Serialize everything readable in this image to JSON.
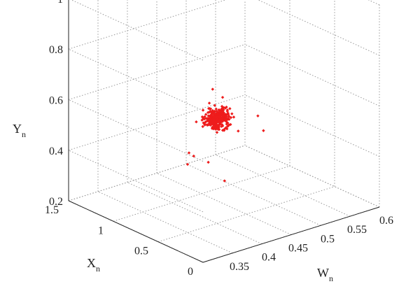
{
  "chart_data": {
    "type": "scatter3d",
    "title": "",
    "axes": {
      "w": {
        "label": "W",
        "subscript": "n",
        "range": [
          0.3,
          0.6
        ],
        "ticks": [
          "0.35",
          "0.4",
          "0.45",
          "0.5",
          "0.55",
          "0.6"
        ]
      },
      "x": {
        "label": "X",
        "subscript": "n",
        "range": [
          0,
          1.5
        ],
        "ticks": [
          "0",
          "0.5",
          "1",
          "1.5"
        ]
      },
      "y": {
        "label": "Y",
        "subscript": "n",
        "range": [
          0.2,
          1.0
        ],
        "ticks": [
          "0.2",
          "0.4",
          "0.6",
          "0.8",
          "1"
        ]
      }
    },
    "grid": true,
    "marker_color": "#ee1c1c",
    "cluster": {
      "center_w": 0.4,
      "center_x": 0.5,
      "center_y": 0.615,
      "approx_points": 350
    },
    "points": [
      [
        0.4,
        0.45,
        0.62
      ],
      [
        0.395,
        0.55,
        0.65
      ],
      [
        0.41,
        0.5,
        0.6
      ],
      [
        0.39,
        0.52,
        0.68
      ],
      [
        0.42,
        0.48,
        0.58
      ],
      [
        0.38,
        0.6,
        0.6
      ],
      [
        0.405,
        0.47,
        0.7
      ],
      [
        0.4,
        0.5,
        0.56
      ],
      [
        0.385,
        0.45,
        0.75
      ],
      [
        0.43,
        0.46,
        0.55
      ],
      [
        0.36,
        0.55,
        0.5
      ],
      [
        0.37,
        0.4,
        0.48
      ],
      [
        0.45,
        0.7,
        0.56
      ],
      [
        0.5,
        0.7,
        0.52
      ],
      [
        0.54,
        0.9,
        0.4
      ],
      [
        0.33,
        0.3,
        0.55
      ],
      [
        0.39,
        0.35,
        0.4
      ],
      [
        0.35,
        0.5,
        0.47
      ]
    ]
  }
}
